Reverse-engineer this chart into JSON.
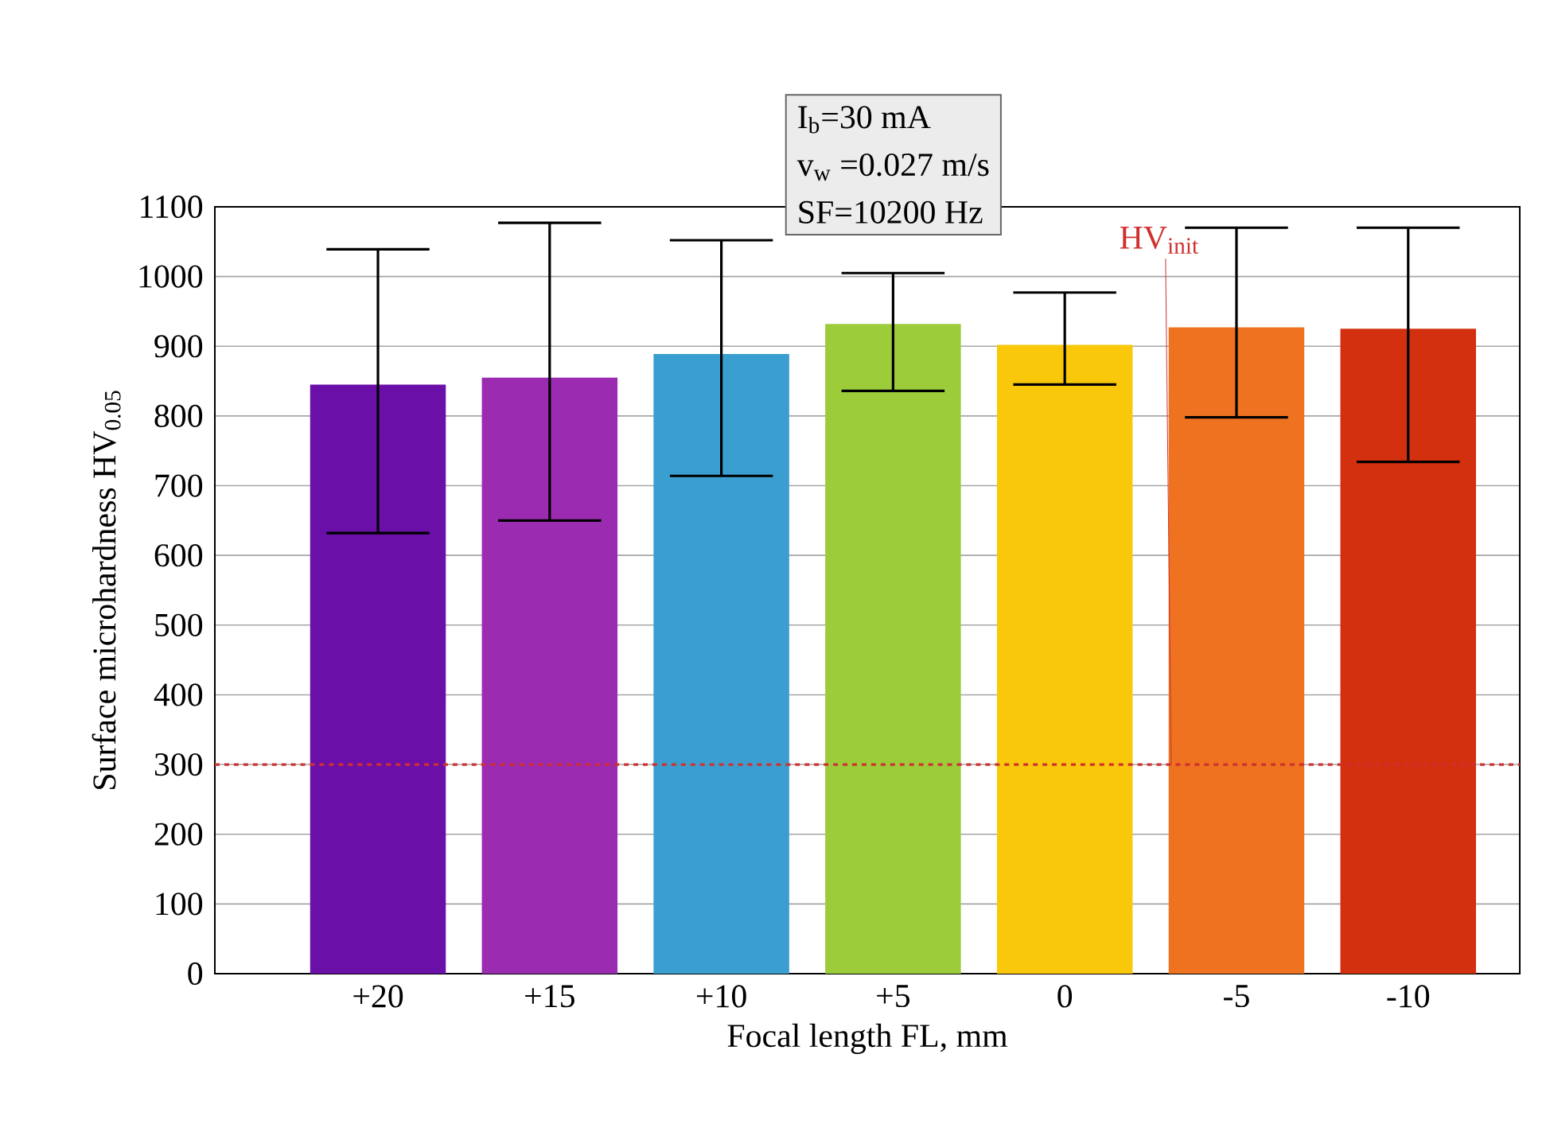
{
  "chart_data": {
    "type": "bar",
    "xlabel": "Focal length FL, mm",
    "ylabel": "Surface microhardness HV$_{0.05}$",
    "categories": [
      "+20",
      "+15",
      "+10",
      "+5",
      "0",
      "-5",
      "-10"
    ],
    "values": [
      845,
      855,
      889,
      932,
      902,
      927,
      925
    ],
    "colors": [
      "#6a0fa8",
      "#9b2bb0",
      "#3a9fd0",
      "#9ccc3a",
      "#fac80a",
      "#ee7220",
      "#d2300e"
    ],
    "errors": [
      [
        632,
        1039
      ],
      [
        650,
        1077
      ],
      [
        714,
        1052
      ],
      [
        836,
        1005
      ],
      [
        845,
        977
      ],
      [
        798,
        1070
      ],
      [
        734,
        1070
      ]
    ],
    "ylim": [
      0,
      1100
    ],
    "yticks": [
      0,
      100,
      200,
      300,
      400,
      500,
      600,
      700,
      800,
      900,
      1000,
      1100
    ],
    "grid": "y",
    "ref_lines": [
      {
        "axis": "y",
        "value": 300,
        "label": "HV$_{init}$",
        "color": "#d03030",
        "line_style": "dashed"
      }
    ],
    "annotations": [
      "I$_{b}$=30 mA",
      "v$_{w}$ =0.027 m/s",
      "SF=10200 Hz"
    ]
  }
}
